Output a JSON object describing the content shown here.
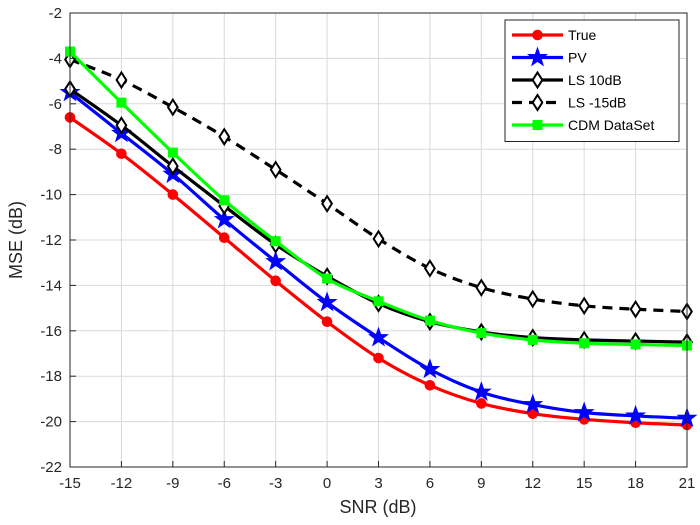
{
  "chart_data": {
    "type": "line",
    "title": "",
    "xlabel": "SNR (dB)",
    "ylabel": "MSE (dB)",
    "xlim": [
      -15,
      21
    ],
    "ylim": [
      -22,
      -2
    ],
    "xticks": [
      -15,
      -12,
      -9,
      -6,
      -3,
      0,
      3,
      6,
      9,
      12,
      15,
      18,
      21
    ],
    "yticks": [
      -22,
      -20,
      -18,
      -16,
      -14,
      -12,
      -10,
      -8,
      -6,
      -4,
      -2
    ],
    "grid": true,
    "legend_position": "top-right",
    "x": [
      -15,
      -12,
      -9,
      -6,
      -3,
      0,
      3,
      6,
      9,
      12,
      15,
      18,
      21
    ],
    "series": [
      {
        "name": "True",
        "color": "#ff0000",
        "dash": "solid",
        "marker": "circle",
        "values": [
          -6.6,
          -8.2,
          -10.0,
          -11.9,
          -13.8,
          -15.6,
          -17.2,
          -18.4,
          -19.2,
          -19.65,
          -19.9,
          -20.05,
          -20.15
        ]
      },
      {
        "name": "PV",
        "color": "#0000ff",
        "dash": "solid",
        "marker": "star",
        "values": [
          -5.5,
          -7.3,
          -9.1,
          -11.1,
          -12.95,
          -14.75,
          -16.3,
          -17.7,
          -18.7,
          -19.25,
          -19.6,
          -19.75,
          -19.85
        ]
      },
      {
        "name": "LS 10dB",
        "color": "#000000",
        "dash": "solid",
        "marker": "diamond",
        "values": [
          -5.35,
          -6.95,
          -8.75,
          -10.5,
          -12.2,
          -13.6,
          -14.8,
          -15.6,
          -16.05,
          -16.3,
          -16.4,
          -16.45,
          -16.5
        ]
      },
      {
        "name": "LS -15dB",
        "color": "#000000",
        "dash": "dashed",
        "marker": "diamond",
        "values": [
          -4.05,
          -4.95,
          -6.15,
          -7.45,
          -8.9,
          -10.4,
          -11.95,
          -13.25,
          -14.1,
          -14.6,
          -14.9,
          -15.05,
          -15.15
        ]
      },
      {
        "name": "CDM DataSet",
        "color": "#00ff00",
        "dash": "solid",
        "marker": "square",
        "values": [
          -3.7,
          -5.95,
          -8.15,
          -10.25,
          -12.05,
          -13.7,
          -14.7,
          -15.55,
          -16.1,
          -16.4,
          -16.55,
          -16.6,
          -16.65
        ]
      }
    ]
  }
}
